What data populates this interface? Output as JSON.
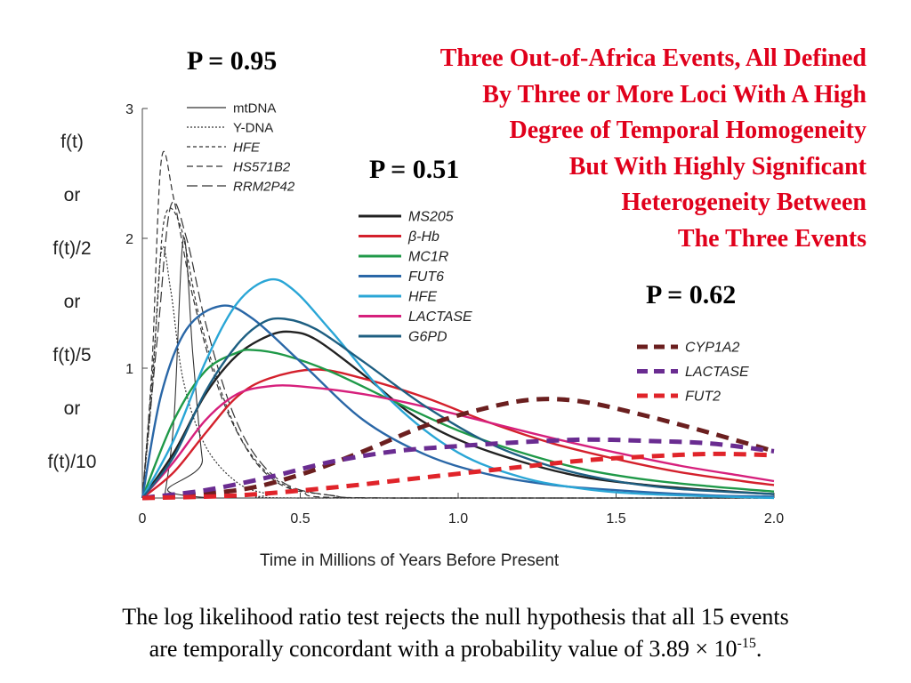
{
  "pvalues": {
    "group1": "P = 0.95",
    "group2": "P = 0.51",
    "group3": "P = 0.62"
  },
  "headline": [
    "Three Out-of-Africa Events, All Defined",
    "By Three or More Loci With A  High",
    "Degree of Temporal Homogeneity",
    "But With Highly Significant",
    "Heterogeneity Between",
    "The Three Events"
  ],
  "footer": {
    "line1": "The log likelihood ratio test rejects the null hypothesis that all 15 events",
    "line2_pre": "are temporally concordant with a probability value of 3.89 × 10",
    "line2_exp": "-15",
    "line2_post": "."
  },
  "chart_data": {
    "type": "line",
    "xlabel": "Time in Millions of Years Before Present",
    "ylabel_lines": [
      "f(t)",
      "or",
      "f(t)/2",
      "or",
      "f(t)/5",
      "or",
      "f(t)/10"
    ],
    "xlim": [
      0,
      2.0
    ],
    "ylim": [
      0,
      3
    ],
    "x_ticks": [
      {
        "value": 0,
        "label": "0"
      },
      {
        "value": 0.5,
        "label": "0.5"
      },
      {
        "value": 1.0,
        "label": "1.0"
      },
      {
        "value": 1.5,
        "label": "1.5"
      },
      {
        "value": 2.0,
        "label": "2.0"
      }
    ],
    "y_ticks": [
      {
        "value": 1,
        "label": "1"
      },
      {
        "value": 2,
        "label": "2"
      },
      {
        "value": 3,
        "label": "3"
      }
    ],
    "grid": false,
    "series": [
      {
        "name": "mtDNA",
        "group": 1,
        "color": "#333333",
        "style": "solid-thin",
        "points": [
          [
            0.07,
            0
          ],
          [
            0.1,
            0.6
          ],
          [
            0.13,
            2.0
          ],
          [
            0.16,
            1.1
          ],
          [
            0.19,
            0.3
          ],
          [
            0.22,
            0
          ],
          [
            2.0,
            0
          ]
        ]
      },
      {
        "name": "Y-DNA",
        "group": 1,
        "color": "#333333",
        "style": "dotted",
        "points": [
          [
            0.0,
            0
          ],
          [
            0.03,
            0.8
          ],
          [
            0.06,
            1.9
          ],
          [
            0.09,
            1.6
          ],
          [
            0.13,
            0.9
          ],
          [
            0.2,
            0.4
          ],
          [
            0.3,
            0.12
          ],
          [
            0.4,
            0.03
          ],
          [
            0.5,
            0
          ],
          [
            2.0,
            0
          ]
        ]
      },
      {
        "name": "HFE",
        "group": 1,
        "color": "#333333",
        "style": "dashed-short",
        "points": [
          [
            0.0,
            0
          ],
          [
            0.04,
            1.2
          ],
          [
            0.07,
            2.15
          ],
          [
            0.12,
            2.1
          ],
          [
            0.18,
            1.4
          ],
          [
            0.26,
            0.75
          ],
          [
            0.34,
            0.35
          ],
          [
            0.45,
            0.1
          ],
          [
            0.6,
            0.02
          ],
          [
            0.8,
            0
          ],
          [
            2.0,
            0
          ]
        ]
      },
      {
        "name": "HS571B2",
        "group": 1,
        "color": "#333333",
        "style": "dashed-medium",
        "points": [
          [
            0.0,
            0
          ],
          [
            0.03,
            1.0
          ],
          [
            0.06,
            2.6
          ],
          [
            0.1,
            2.3
          ],
          [
            0.16,
            1.55
          ],
          [
            0.24,
            0.85
          ],
          [
            0.32,
            0.42
          ],
          [
            0.4,
            0.17
          ],
          [
            0.5,
            0.05
          ],
          [
            0.7,
            0
          ],
          [
            2.0,
            0
          ]
        ]
      },
      {
        "name": "RRM2P42",
        "group": 1,
        "color": "#333333",
        "style": "dashed-long",
        "points": [
          [
            0.0,
            0
          ],
          [
            0.05,
            1.3
          ],
          [
            0.09,
            2.25
          ],
          [
            0.14,
            2.0
          ],
          [
            0.2,
            1.35
          ],
          [
            0.28,
            0.7
          ],
          [
            0.36,
            0.32
          ],
          [
            0.46,
            0.1
          ],
          [
            0.6,
            0.02
          ],
          [
            0.8,
            0
          ],
          [
            2.0,
            0
          ]
        ]
      },
      {
        "name": "MS205",
        "group": 2,
        "color": "#222222",
        "style": "solid",
        "points": [
          [
            0.0,
            0
          ],
          [
            0.1,
            0.35
          ],
          [
            0.2,
            0.8
          ],
          [
            0.3,
            1.1
          ],
          [
            0.4,
            1.25
          ],
          [
            0.47,
            1.28
          ],
          [
            0.55,
            1.22
          ],
          [
            0.7,
            0.95
          ],
          [
            0.85,
            0.65
          ],
          [
            1.0,
            0.45
          ],
          [
            1.2,
            0.28
          ],
          [
            1.4,
            0.16
          ],
          [
            1.6,
            0.1
          ],
          [
            1.8,
            0.06
          ],
          [
            2.0,
            0.03
          ]
        ]
      },
      {
        "name": "β-Hb",
        "group": 2,
        "color": "#d4202c",
        "style": "solid",
        "points": [
          [
            0.0,
            0
          ],
          [
            0.1,
            0.2
          ],
          [
            0.2,
            0.5
          ],
          [
            0.3,
            0.78
          ],
          [
            0.4,
            0.92
          ],
          [
            0.55,
            0.99
          ],
          [
            0.7,
            0.92
          ],
          [
            0.9,
            0.77
          ],
          [
            1.1,
            0.58
          ],
          [
            1.3,
            0.42
          ],
          [
            1.5,
            0.3
          ],
          [
            1.7,
            0.2
          ],
          [
            1.9,
            0.13
          ],
          [
            2.0,
            0.1
          ]
        ]
      },
      {
        "name": "MC1R",
        "group": 2,
        "color": "#1f9948",
        "style": "solid",
        "points": [
          [
            0.0,
            0
          ],
          [
            0.1,
            0.6
          ],
          [
            0.2,
            0.98
          ],
          [
            0.3,
            1.12
          ],
          [
            0.35,
            1.14
          ],
          [
            0.45,
            1.1
          ],
          [
            0.6,
            0.97
          ],
          [
            0.8,
            0.74
          ],
          [
            1.0,
            0.52
          ],
          [
            1.2,
            0.35
          ],
          [
            1.4,
            0.22
          ],
          [
            1.6,
            0.14
          ],
          [
            1.8,
            0.09
          ],
          [
            2.0,
            0.05
          ]
        ]
      },
      {
        "name": "FUT6",
        "group": 2,
        "color": "#2a67a7",
        "style": "solid",
        "points": [
          [
            0.0,
            0
          ],
          [
            0.06,
            0.8
          ],
          [
            0.14,
            1.3
          ],
          [
            0.25,
            1.48
          ],
          [
            0.35,
            1.38
          ],
          [
            0.5,
            1.05
          ],
          [
            0.7,
            0.6
          ],
          [
            0.9,
            0.33
          ],
          [
            1.1,
            0.18
          ],
          [
            1.3,
            0.1
          ],
          [
            1.5,
            0.06
          ],
          [
            1.8,
            0.02
          ],
          [
            2.0,
            0.01
          ]
        ]
      },
      {
        "name": "HFE",
        "group": 2,
        "color": "#2aa6d6",
        "style": "solid",
        "points": [
          [
            0.0,
            0
          ],
          [
            0.1,
            0.45
          ],
          [
            0.2,
            1.05
          ],
          [
            0.3,
            1.5
          ],
          [
            0.4,
            1.68
          ],
          [
            0.48,
            1.6
          ],
          [
            0.6,
            1.28
          ],
          [
            0.8,
            0.72
          ],
          [
            1.0,
            0.35
          ],
          [
            1.2,
            0.16
          ],
          [
            1.4,
            0.07
          ],
          [
            1.6,
            0.03
          ],
          [
            2.0,
            0
          ]
        ]
      },
      {
        "name": "LACTASE",
        "group": 2,
        "color": "#d6207c",
        "style": "solid",
        "points": [
          [
            0.0,
            0
          ],
          [
            0.1,
            0.28
          ],
          [
            0.2,
            0.6
          ],
          [
            0.3,
            0.8
          ],
          [
            0.4,
            0.86
          ],
          [
            0.5,
            0.86
          ],
          [
            0.7,
            0.8
          ],
          [
            0.9,
            0.7
          ],
          [
            1.1,
            0.58
          ],
          [
            1.3,
            0.46
          ],
          [
            1.5,
            0.35
          ],
          [
            1.7,
            0.25
          ],
          [
            1.9,
            0.17
          ],
          [
            2.0,
            0.13
          ]
        ]
      },
      {
        "name": "G6PD",
        "group": 2,
        "color": "#1e5f82",
        "style": "solid",
        "points": [
          [
            0.0,
            0
          ],
          [
            0.1,
            0.32
          ],
          [
            0.2,
            0.82
          ],
          [
            0.3,
            1.18
          ],
          [
            0.38,
            1.35
          ],
          [
            0.45,
            1.38
          ],
          [
            0.55,
            1.3
          ],
          [
            0.7,
            1.05
          ],
          [
            0.9,
            0.7
          ],
          [
            1.1,
            0.42
          ],
          [
            1.3,
            0.24
          ],
          [
            1.5,
            0.13
          ],
          [
            1.7,
            0.07
          ],
          [
            2.0,
            0.03
          ]
        ]
      },
      {
        "name": "CYP1A2",
        "group": 3,
        "color": "#6b1f1f",
        "style": "heavy-dash",
        "points": [
          [
            0.0,
            0
          ],
          [
            0.3,
            0.06
          ],
          [
            0.5,
            0.18
          ],
          [
            0.7,
            0.36
          ],
          [
            0.9,
            0.56
          ],
          [
            1.1,
            0.7
          ],
          [
            1.25,
            0.76
          ],
          [
            1.4,
            0.74
          ],
          [
            1.6,
            0.63
          ],
          [
            1.8,
            0.5
          ],
          [
            2.0,
            0.36
          ]
        ]
      },
      {
        "name": "LACTASE",
        "group": 3,
        "color": "#6a2c91",
        "style": "heavy-dash",
        "points": [
          [
            0.0,
            0
          ],
          [
            0.2,
            0.06
          ],
          [
            0.4,
            0.16
          ],
          [
            0.6,
            0.28
          ],
          [
            0.8,
            0.36
          ],
          [
            1.0,
            0.4
          ],
          [
            1.2,
            0.43
          ],
          [
            1.4,
            0.45
          ],
          [
            1.6,
            0.44
          ],
          [
            1.8,
            0.42
          ],
          [
            2.0,
            0.36
          ]
        ]
      },
      {
        "name": "FUT2",
        "group": 3,
        "color": "#e0242a",
        "style": "heavy-dash",
        "points": [
          [
            0.0,
            0
          ],
          [
            0.3,
            0.02
          ],
          [
            0.6,
            0.08
          ],
          [
            0.9,
            0.16
          ],
          [
            1.2,
            0.24
          ],
          [
            1.4,
            0.29
          ],
          [
            1.6,
            0.32
          ],
          [
            1.8,
            0.34
          ],
          [
            2.0,
            0.33
          ]
        ]
      }
    ]
  }
}
